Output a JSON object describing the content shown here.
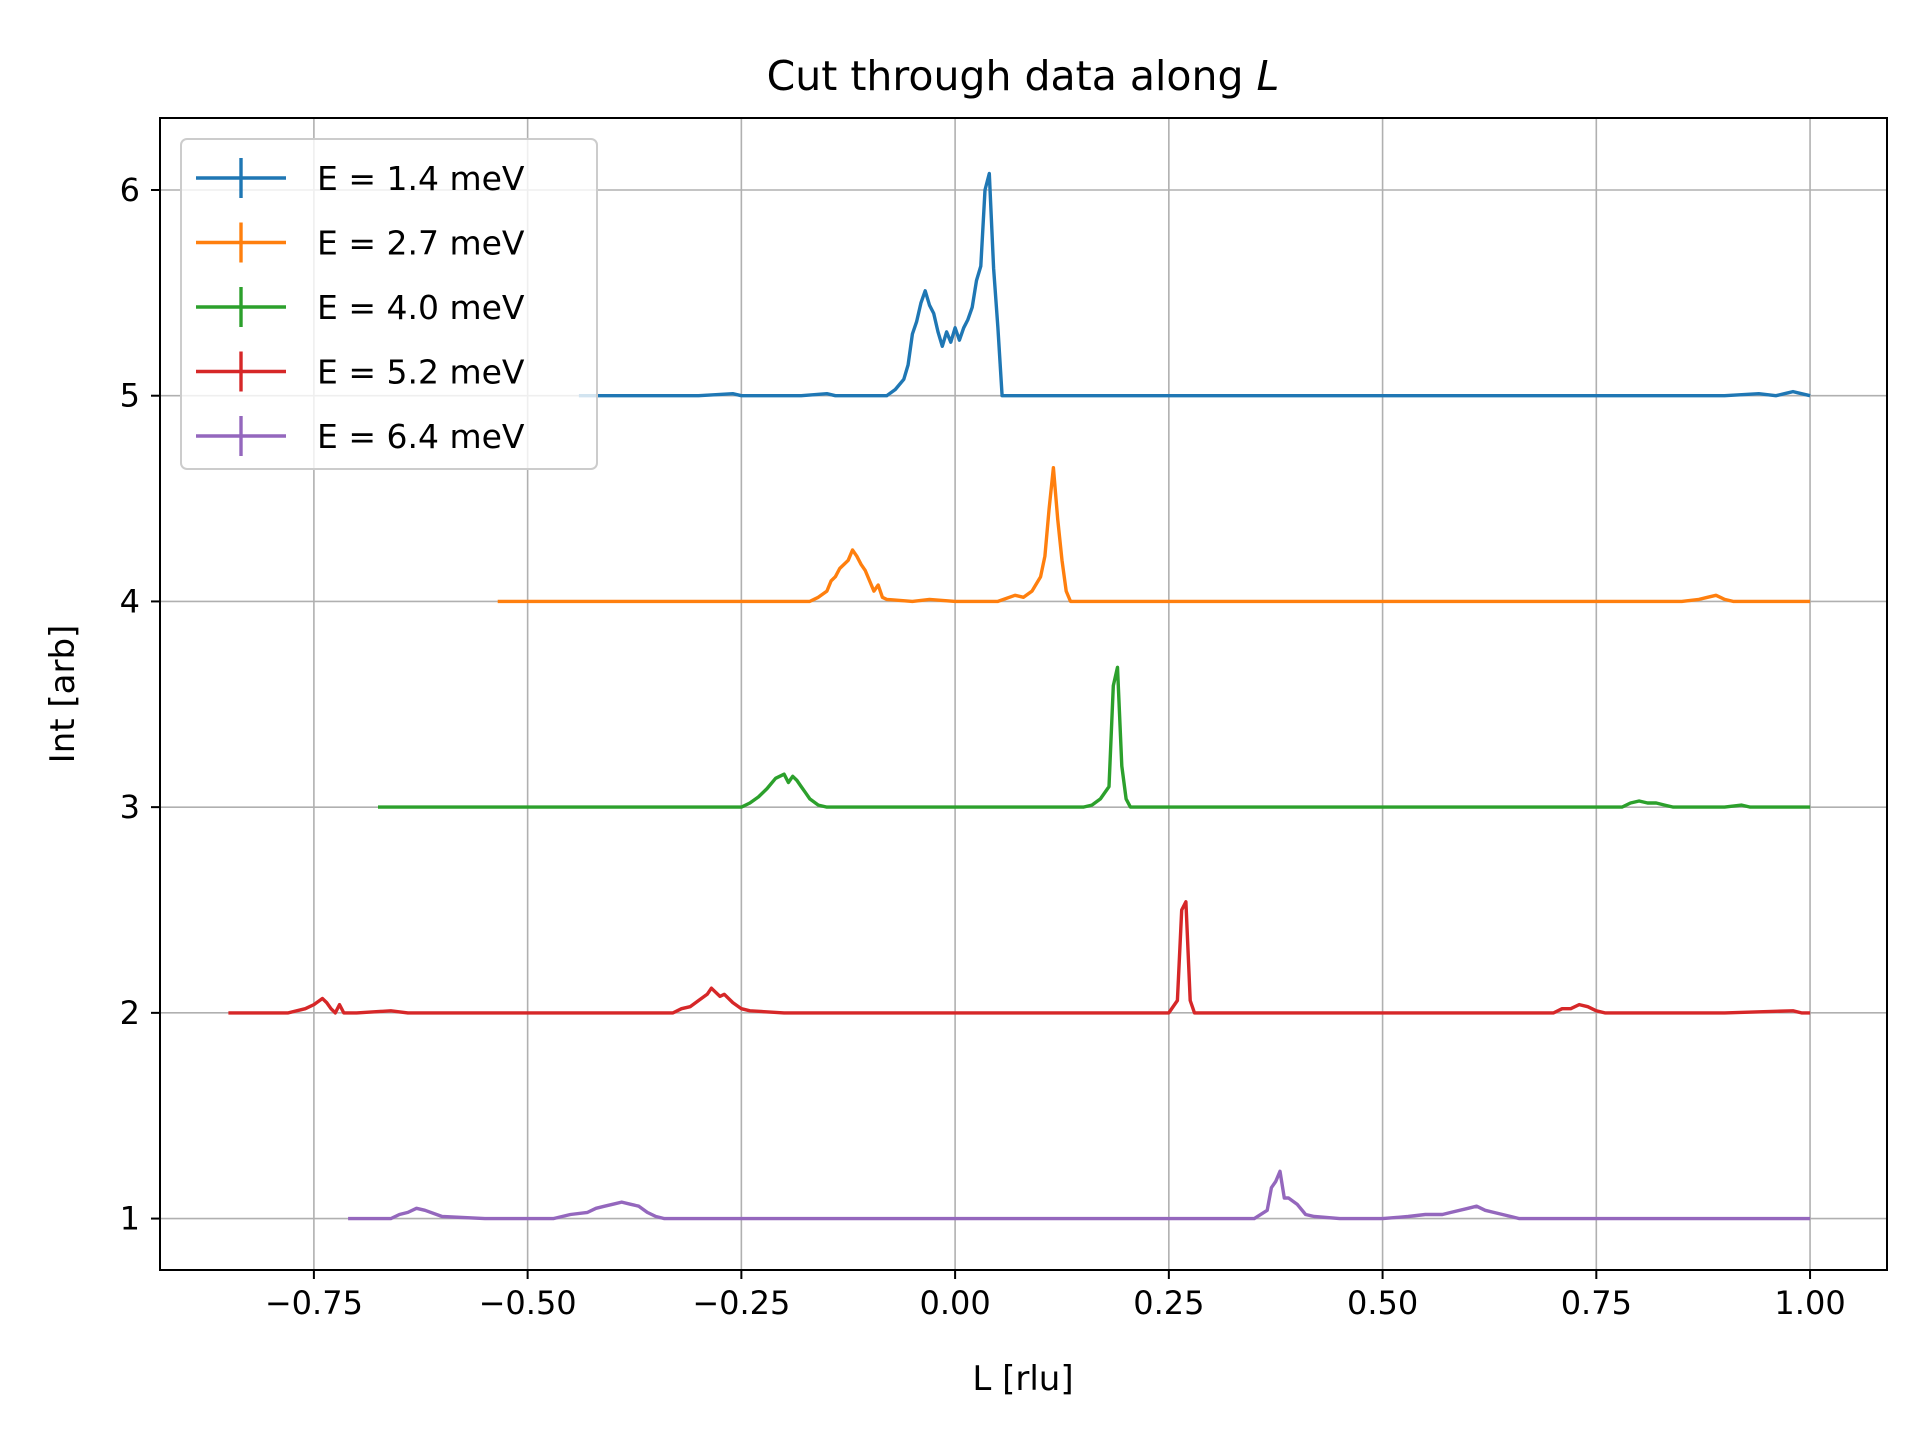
{
  "chart_data": {
    "type": "line",
    "title_prefix": "Cut through data along ",
    "title_var": "L",
    "xlabel": "L [rlu]",
    "ylabel": "Int [arb]",
    "xlim": [
      -0.93,
      1.09
    ],
    "ylim": [
      0.75,
      6.35
    ],
    "x_ticks": [
      -0.75,
      -0.5,
      -0.25,
      0.0,
      0.25,
      0.5,
      0.75,
      1.0
    ],
    "x_tick_labels": [
      "−0.75",
      "−0.50",
      "−0.25",
      "0.00",
      "0.25",
      "0.50",
      "0.75",
      "1.00"
    ],
    "y_ticks": [
      1,
      2,
      3,
      4,
      5,
      6
    ],
    "y_tick_labels": [
      "1",
      "2",
      "3",
      "4",
      "5",
      "6"
    ],
    "grid": true,
    "legend_position": "top-left",
    "series": [
      {
        "name": "E = 1.4 meV",
        "color": "#1f77b4",
        "points": [
          [
            -0.44,
            5.0
          ],
          [
            -0.3,
            5.0
          ],
          [
            -0.26,
            5.01
          ],
          [
            -0.25,
            5.0
          ],
          [
            -0.18,
            5.0
          ],
          [
            -0.15,
            5.01
          ],
          [
            -0.14,
            5.0
          ],
          [
            -0.08,
            5.0
          ],
          [
            -0.07,
            5.03
          ],
          [
            -0.06,
            5.08
          ],
          [
            -0.055,
            5.15
          ],
          [
            -0.05,
            5.3
          ],
          [
            -0.045,
            5.36
          ],
          [
            -0.04,
            5.45
          ],
          [
            -0.035,
            5.51
          ],
          [
            -0.03,
            5.44
          ],
          [
            -0.025,
            5.4
          ],
          [
            -0.02,
            5.31
          ],
          [
            -0.015,
            5.24
          ],
          [
            -0.01,
            5.31
          ],
          [
            -0.005,
            5.26
          ],
          [
            0.0,
            5.33
          ],
          [
            0.005,
            5.27
          ],
          [
            0.01,
            5.33
          ],
          [
            0.015,
            5.37
          ],
          [
            0.02,
            5.43
          ],
          [
            0.025,
            5.56
          ],
          [
            0.03,
            5.63
          ],
          [
            0.035,
            6.0
          ],
          [
            0.04,
            6.08
          ],
          [
            0.045,
            5.62
          ],
          [
            0.05,
            5.33
          ],
          [
            0.055,
            5.0
          ],
          [
            0.1,
            5.0
          ],
          [
            0.2,
            5.0
          ],
          [
            0.3,
            5.0
          ],
          [
            0.5,
            5.0
          ],
          [
            0.7,
            5.0
          ],
          [
            0.9,
            5.0
          ],
          [
            0.94,
            5.01
          ],
          [
            0.96,
            5.0
          ],
          [
            0.97,
            5.01
          ],
          [
            0.98,
            5.02
          ],
          [
            0.99,
            5.01
          ],
          [
            1.0,
            5.0
          ]
        ]
      },
      {
        "name": "E = 2.7 meV",
        "color": "#ff7f0e",
        "points": [
          [
            -0.535,
            4.0
          ],
          [
            -0.2,
            4.0
          ],
          [
            -0.17,
            4.0
          ],
          [
            -0.16,
            4.02
          ],
          [
            -0.15,
            4.05
          ],
          [
            -0.145,
            4.1
          ],
          [
            -0.14,
            4.12
          ],
          [
            -0.135,
            4.16
          ],
          [
            -0.13,
            4.18
          ],
          [
            -0.125,
            4.2
          ],
          [
            -0.12,
            4.25
          ],
          [
            -0.115,
            4.22
          ],
          [
            -0.11,
            4.18
          ],
          [
            -0.105,
            4.15
          ],
          [
            -0.1,
            4.1
          ],
          [
            -0.095,
            4.05
          ],
          [
            -0.09,
            4.08
          ],
          [
            -0.085,
            4.02
          ],
          [
            -0.08,
            4.01
          ],
          [
            -0.05,
            4.0
          ],
          [
            -0.03,
            4.01
          ],
          [
            0.0,
            4.0
          ],
          [
            0.05,
            4.0
          ],
          [
            0.07,
            4.03
          ],
          [
            0.08,
            4.02
          ],
          [
            0.09,
            4.05
          ],
          [
            0.1,
            4.12
          ],
          [
            0.105,
            4.22
          ],
          [
            0.11,
            4.45
          ],
          [
            0.115,
            4.65
          ],
          [
            0.12,
            4.4
          ],
          [
            0.125,
            4.2
          ],
          [
            0.13,
            4.05
          ],
          [
            0.135,
            4.0
          ],
          [
            0.2,
            4.0
          ],
          [
            0.5,
            4.0
          ],
          [
            0.85,
            4.0
          ],
          [
            0.87,
            4.01
          ],
          [
            0.88,
            4.02
          ],
          [
            0.89,
            4.03
          ],
          [
            0.895,
            4.02
          ],
          [
            0.9,
            4.01
          ],
          [
            0.91,
            4.0
          ],
          [
            1.0,
            4.0
          ]
        ]
      },
      {
        "name": "E = 4.0 meV",
        "color": "#2ca02c",
        "points": [
          [
            -0.675,
            3.0
          ],
          [
            -0.3,
            3.0
          ],
          [
            -0.25,
            3.0
          ],
          [
            -0.24,
            3.02
          ],
          [
            -0.23,
            3.05
          ],
          [
            -0.22,
            3.09
          ],
          [
            -0.21,
            3.14
          ],
          [
            -0.2,
            3.16
          ],
          [
            -0.195,
            3.12
          ],
          [
            -0.19,
            3.15
          ],
          [
            -0.185,
            3.13
          ],
          [
            -0.18,
            3.1
          ],
          [
            -0.175,
            3.07
          ],
          [
            -0.17,
            3.04
          ],
          [
            -0.16,
            3.01
          ],
          [
            -0.15,
            3.0
          ],
          [
            0.0,
            3.0
          ],
          [
            0.1,
            3.0
          ],
          [
            0.15,
            3.0
          ],
          [
            0.16,
            3.01
          ],
          [
            0.17,
            3.04
          ],
          [
            0.18,
            3.1
          ],
          [
            0.185,
            3.59
          ],
          [
            0.19,
            3.68
          ],
          [
            0.195,
            3.2
          ],
          [
            0.2,
            3.04
          ],
          [
            0.205,
            3.0
          ],
          [
            0.3,
            3.0
          ],
          [
            0.5,
            3.0
          ],
          [
            0.78,
            3.0
          ],
          [
            0.79,
            3.02
          ],
          [
            0.8,
            3.03
          ],
          [
            0.81,
            3.02
          ],
          [
            0.82,
            3.02
          ],
          [
            0.83,
            3.01
          ],
          [
            0.84,
            3.0
          ],
          [
            0.9,
            3.0
          ],
          [
            0.92,
            3.01
          ],
          [
            0.93,
            3.0
          ],
          [
            1.0,
            3.0
          ]
        ]
      },
      {
        "name": "E = 5.2 meV",
        "color": "#d62728",
        "points": [
          [
            -0.85,
            2.0
          ],
          [
            -0.78,
            2.0
          ],
          [
            -0.76,
            2.02
          ],
          [
            -0.75,
            2.04
          ],
          [
            -0.74,
            2.07
          ],
          [
            -0.735,
            2.05
          ],
          [
            -0.73,
            2.02
          ],
          [
            -0.725,
            2.0
          ],
          [
            -0.72,
            2.04
          ],
          [
            -0.715,
            2.0
          ],
          [
            -0.7,
            2.0
          ],
          [
            -0.66,
            2.01
          ],
          [
            -0.64,
            2.0
          ],
          [
            -0.4,
            2.0
          ],
          [
            -0.33,
            2.0
          ],
          [
            -0.32,
            2.02
          ],
          [
            -0.31,
            2.03
          ],
          [
            -0.3,
            2.06
          ],
          [
            -0.29,
            2.09
          ],
          [
            -0.285,
            2.12
          ],
          [
            -0.28,
            2.1
          ],
          [
            -0.275,
            2.08
          ],
          [
            -0.27,
            2.09
          ],
          [
            -0.26,
            2.05
          ],
          [
            -0.25,
            2.02
          ],
          [
            -0.24,
            2.01
          ],
          [
            -0.2,
            2.0
          ],
          [
            0.0,
            2.0
          ],
          [
            0.2,
            2.0
          ],
          [
            0.25,
            2.0
          ],
          [
            0.26,
            2.06
          ],
          [
            0.265,
            2.5
          ],
          [
            0.27,
            2.54
          ],
          [
            0.275,
            2.06
          ],
          [
            0.28,
            2.0
          ],
          [
            0.4,
            2.0
          ],
          [
            0.6,
            2.0
          ],
          [
            0.7,
            2.0
          ],
          [
            0.71,
            2.02
          ],
          [
            0.72,
            2.02
          ],
          [
            0.73,
            2.04
          ],
          [
            0.74,
            2.03
          ],
          [
            0.75,
            2.01
          ],
          [
            0.76,
            2.0
          ],
          [
            0.9,
            2.0
          ],
          [
            0.98,
            2.01
          ],
          [
            0.99,
            2.0
          ],
          [
            1.0,
            2.0
          ]
        ]
      },
      {
        "name": "E = 6.4 meV",
        "color": "#9467bd",
        "points": [
          [
            -0.71,
            1.0
          ],
          [
            -0.66,
            1.0
          ],
          [
            -0.65,
            1.02
          ],
          [
            -0.64,
            1.03
          ],
          [
            -0.63,
            1.05
          ],
          [
            -0.62,
            1.04
          ],
          [
            -0.6,
            1.01
          ],
          [
            -0.55,
            1.0
          ],
          [
            -0.47,
            1.0
          ],
          [
            -0.45,
            1.02
          ],
          [
            -0.43,
            1.03
          ],
          [
            -0.42,
            1.05
          ],
          [
            -0.41,
            1.06
          ],
          [
            -0.4,
            1.07
          ],
          [
            -0.39,
            1.08
          ],
          [
            -0.38,
            1.07
          ],
          [
            -0.37,
            1.06
          ],
          [
            -0.36,
            1.03
          ],
          [
            -0.35,
            1.01
          ],
          [
            -0.34,
            1.0
          ],
          [
            -0.2,
            1.0
          ],
          [
            0.0,
            1.0
          ],
          [
            0.2,
            1.0
          ],
          [
            0.35,
            1.0
          ],
          [
            0.365,
            1.04
          ],
          [
            0.37,
            1.15
          ],
          [
            0.375,
            1.18
          ],
          [
            0.38,
            1.23
          ],
          [
            0.385,
            1.1
          ],
          [
            0.39,
            1.1
          ],
          [
            0.4,
            1.07
          ],
          [
            0.41,
            1.02
          ],
          [
            0.42,
            1.01
          ],
          [
            0.45,
            1.0
          ],
          [
            0.5,
            1.0
          ],
          [
            0.53,
            1.01
          ],
          [
            0.55,
            1.02
          ],
          [
            0.57,
            1.02
          ],
          [
            0.58,
            1.03
          ],
          [
            0.6,
            1.05
          ],
          [
            0.61,
            1.06
          ],
          [
            0.62,
            1.04
          ],
          [
            0.63,
            1.03
          ],
          [
            0.65,
            1.01
          ],
          [
            0.66,
            1.0
          ],
          [
            0.8,
            1.0
          ],
          [
            1.0,
            1.0
          ]
        ]
      }
    ]
  }
}
